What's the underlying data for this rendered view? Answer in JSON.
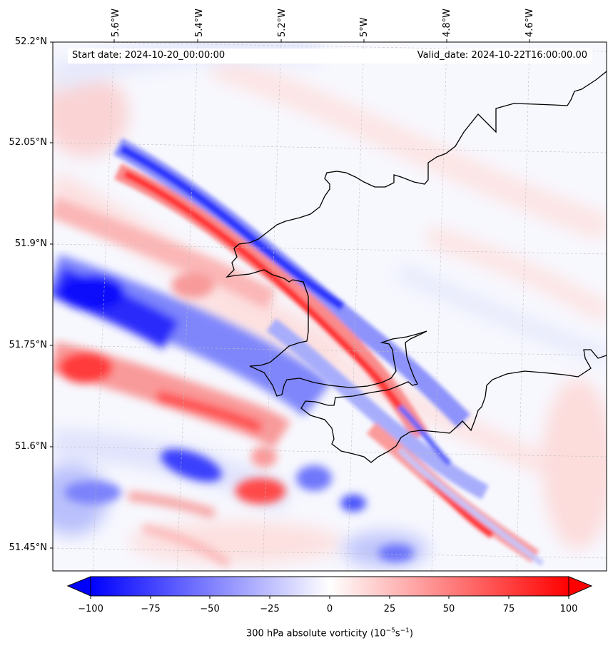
{
  "map": {
    "type": "filled-contour-map",
    "variable": "300 hPa absolute vorticity",
    "start_label": "Start date: 2024-10-20_00:00:00",
    "valid_label": "Valid_date: 2024-10-22T16:00:00.00",
    "lon_labels": [
      "5.6°W",
      "5.4°W",
      "5.2°W",
      "5°W",
      "4.8°W",
      "4.6°W"
    ],
    "lat_labels": [
      "52.2°N",
      "52.05°N",
      "51.9°N",
      "51.75°N",
      "51.6°N",
      "51.45°N"
    ],
    "colorbar": {
      "title": "300 hPa absolute vorticity (10",
      "title_exp1": "−5",
      "title_mid": "s",
      "title_exp2": "−1",
      "title_end": ")",
      "ticks": [
        "−100",
        "−75",
        "−50",
        "−25",
        "0",
        "25",
        "50",
        "75",
        "100"
      ],
      "range": [
        -100,
        100
      ],
      "colormap": "bwr",
      "low_color": "#0000ff",
      "mid_color": "#ffffff",
      "high_color": "#ff0000"
    },
    "coastline_color": "#000000"
  }
}
